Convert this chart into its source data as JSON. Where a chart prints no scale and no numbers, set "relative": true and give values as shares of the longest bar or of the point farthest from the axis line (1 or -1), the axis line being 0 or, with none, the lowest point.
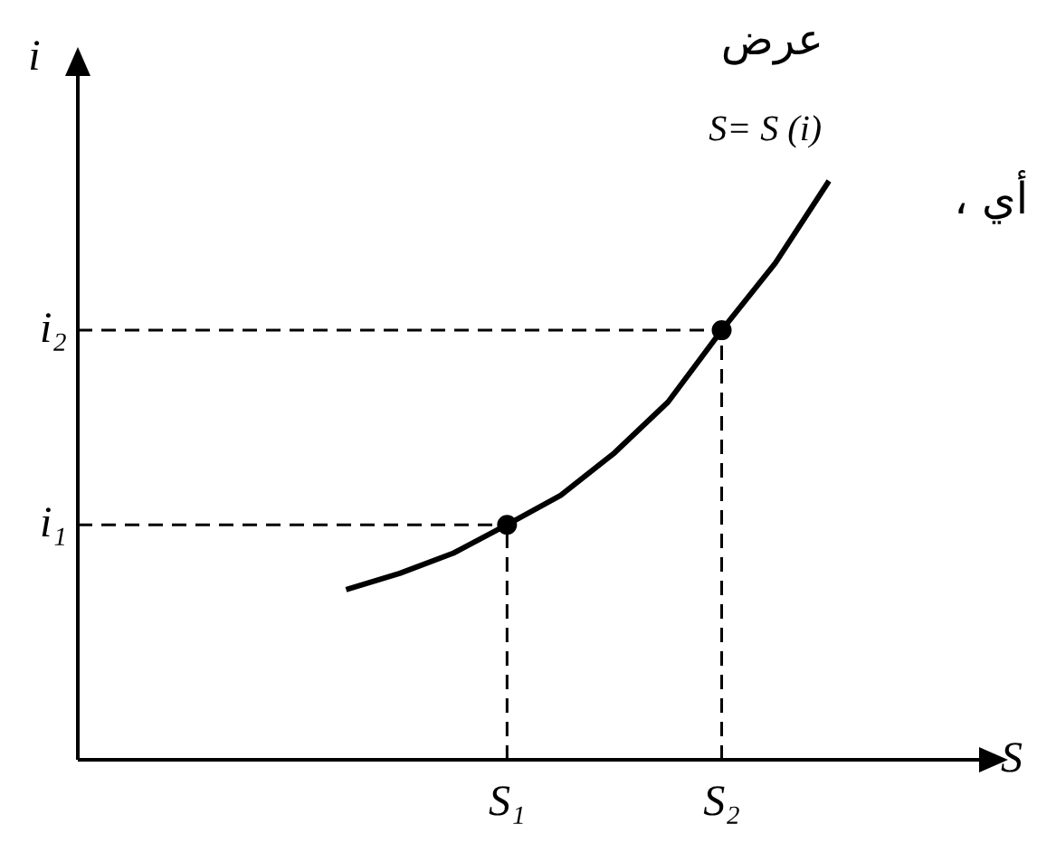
{
  "chart_data": {
    "type": "line",
    "relative": true,
    "xlabel": "S",
    "ylabel": "i",
    "legend": false,
    "categories": [
      null,
      null,
      null,
      null,
      null,
      null,
      null,
      null,
      "S₁",
      null,
      null,
      null,
      "S₂",
      null,
      null,
      null,
      null,
      null
    ],
    "series": [
      {
        "name": "S= S (i)",
        "color": "#000000",
        "marker": "none",
        "values": [
          null,
          null,
          null,
          null,
          null,
          0.294,
          0.322,
          0.357,
          0.406,
          0.457,
          0.53,
          0.618,
          0.742,
          0.858,
          1,
          null,
          null,
          null
        ]
      },
      {
        "type": "scatter",
        "color": "#000000",
        "marker": "circle",
        "values": [
          null,
          null,
          null,
          null,
          null,
          null,
          null,
          null,
          0.406,
          null,
          null,
          null,
          0.742,
          null,
          null,
          null,
          null,
          null
        ]
      }
    ],
    "ref_lines": [
      {
        "axis": "y",
        "value": 0.406,
        "label": "i₁",
        "line_style": "dashed"
      },
      {
        "axis": "y",
        "value": 0.742,
        "label": "i₂",
        "line_style": "dashed"
      }
    ],
    "annotations": [
      "عرض",
      "، أي"
    ]
  }
}
